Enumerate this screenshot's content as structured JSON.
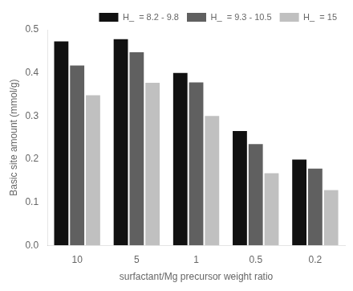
{
  "chart_data": {
    "type": "bar",
    "categories": [
      "10",
      "5",
      "1",
      "0.5",
      "0.2"
    ],
    "series": [
      {
        "name": "H_  = 8.2 - 9.8",
        "color": "#111111",
        "values": [
          0.473,
          0.478,
          0.4,
          0.265,
          0.199
        ]
      },
      {
        "name": "H_  = 9.3 - 10.5",
        "color": "#606060",
        "values": [
          0.417,
          0.448,
          0.378,
          0.235,
          0.178
        ]
      },
      {
        "name": "H_  = 15",
        "color": "#c0c0c0",
        "values": [
          0.348,
          0.377,
          0.3,
          0.167,
          0.128
        ]
      }
    ],
    "xlabel": "surfactant/Mg precursor weight ratio",
    "ylabel": "Basic site amount (mmol/g)",
    "ylim": [
      0.0,
      0.5
    ],
    "yticks": [
      {
        "value": 0.0,
        "label": "0.0"
      },
      0.1,
      0.2,
      0.3,
      0.4,
      0.5
    ],
    "grid": false,
    "legend": "upper right"
  }
}
